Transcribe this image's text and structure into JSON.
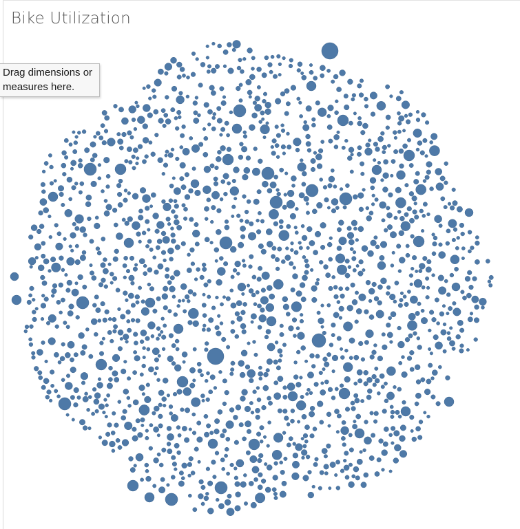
{
  "title": "Bike Utilization",
  "drop_hint": "Drag dimensions or measures here.",
  "colors": {
    "bubble": "#4e79a7",
    "bubble_stroke": "#3f6690",
    "background": "#ffffff"
  },
  "chart_data": {
    "type": "packed-bubble",
    "title": "Bike Utilization",
    "mark_color": "#4e79a7",
    "legend": "none",
    "grid": false
  }
}
